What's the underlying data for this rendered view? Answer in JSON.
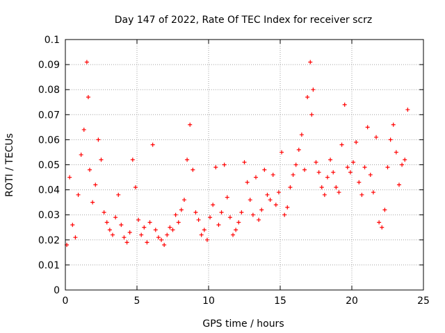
{
  "chart_data": {
    "type": "scatter",
    "title": "Day 147 of 2022, Rate Of TEC Index for receiver scrz",
    "xlabel": "GPS time / hours",
    "ylabel": "ROTI / TECUs",
    "xlim": [
      0,
      25
    ],
    "ylim": [
      0,
      0.1
    ],
    "xticks": [
      0,
      5,
      10,
      15,
      20,
      25
    ],
    "yticks": [
      0,
      0.01,
      0.02,
      0.03,
      0.04,
      0.05,
      0.06,
      0.07,
      0.08,
      0.09,
      0.1
    ],
    "xtick_labels": [
      "0",
      "5",
      "10",
      "15",
      "20",
      "25"
    ],
    "ytick_labels": [
      "0",
      "0.01",
      "0.02",
      "0.03",
      "0.04",
      "0.05",
      "0.06",
      "0.07",
      "0.08",
      "0.09",
      "0.1"
    ],
    "grid": true,
    "marker": "+",
    "color": "#ff0000",
    "series": [
      {
        "name": "ROTI",
        "x": [
          0.1,
          0.3,
          0.5,
          0.7,
          0.9,
          1.1,
          1.3,
          1.5,
          1.6,
          1.7,
          1.9,
          2.1,
          2.3,
          2.5,
          2.7,
          2.9,
          3.1,
          3.3,
          3.5,
          3.7,
          3.9,
          4.1,
          4.3,
          4.5,
          4.7,
          4.9,
          5.1,
          5.3,
          5.5,
          5.7,
          5.9,
          6.1,
          6.3,
          6.5,
          6.7,
          6.9,
          7.1,
          7.3,
          7.5,
          7.7,
          7.9,
          8.1,
          8.3,
          8.5,
          8.7,
          8.9,
          9.1,
          9.3,
          9.5,
          9.7,
          9.9,
          10.1,
          10.3,
          10.5,
          10.7,
          10.9,
          11.1,
          11.3,
          11.5,
          11.7,
          11.9,
          12.1,
          12.3,
          12.5,
          12.7,
          12.9,
          13.1,
          13.3,
          13.5,
          13.7,
          13.9,
          14.1,
          14.3,
          14.5,
          14.7,
          14.9,
          15.1,
          15.3,
          15.5,
          15.7,
          15.9,
          16.1,
          16.3,
          16.5,
          16.7,
          16.9,
          17.1,
          17.2,
          17.3,
          17.5,
          17.7,
          17.9,
          18.1,
          18.3,
          18.5,
          18.7,
          18.9,
          19.1,
          19.3,
          19.5,
          19.7,
          19.9,
          20.1,
          20.3,
          20.5,
          20.7,
          20.9,
          21.1,
          21.3,
          21.5,
          21.7,
          21.9,
          22.1,
          22.3,
          22.5,
          22.7,
          22.9,
          23.1,
          23.3,
          23.5,
          23.7,
          23.9
        ],
        "y": [
          0.018,
          0.045,
          0.026,
          0.021,
          0.038,
          0.054,
          0.064,
          0.091,
          0.077,
          0.048,
          0.035,
          0.042,
          0.06,
          0.052,
          0.031,
          0.027,
          0.024,
          0.022,
          0.029,
          0.038,
          0.026,
          0.021,
          0.019,
          0.023,
          0.052,
          0.041,
          0.028,
          0.022,
          0.025,
          0.019,
          0.027,
          0.058,
          0.024,
          0.021,
          0.02,
          0.018,
          0.022,
          0.025,
          0.024,
          0.03,
          0.027,
          0.032,
          0.036,
          0.052,
          0.066,
          0.048,
          0.031,
          0.028,
          0.022,
          0.024,
          0.02,
          0.029,
          0.034,
          0.049,
          0.026,
          0.031,
          0.05,
          0.037,
          0.029,
          0.022,
          0.024,
          0.027,
          0.031,
          0.051,
          0.043,
          0.036,
          0.03,
          0.045,
          0.028,
          0.032,
          0.048,
          0.038,
          0.036,
          0.046,
          0.034,
          0.039,
          0.055,
          0.03,
          0.033,
          0.041,
          0.046,
          0.05,
          0.056,
          0.062,
          0.048,
          0.077,
          0.091,
          0.07,
          0.08,
          0.051,
          0.047,
          0.041,
          0.038,
          0.045,
          0.052,
          0.047,
          0.041,
          0.039,
          0.058,
          0.074,
          0.049,
          0.047,
          0.051,
          0.059,
          0.043,
          0.038,
          0.049,
          0.065,
          0.046,
          0.039,
          0.061,
          0.027,
          0.025,
          0.032,
          0.049,
          0.06,
          0.066,
          0.055,
          0.042,
          0.05,
          0.052,
          0.072
        ]
      }
    ]
  }
}
